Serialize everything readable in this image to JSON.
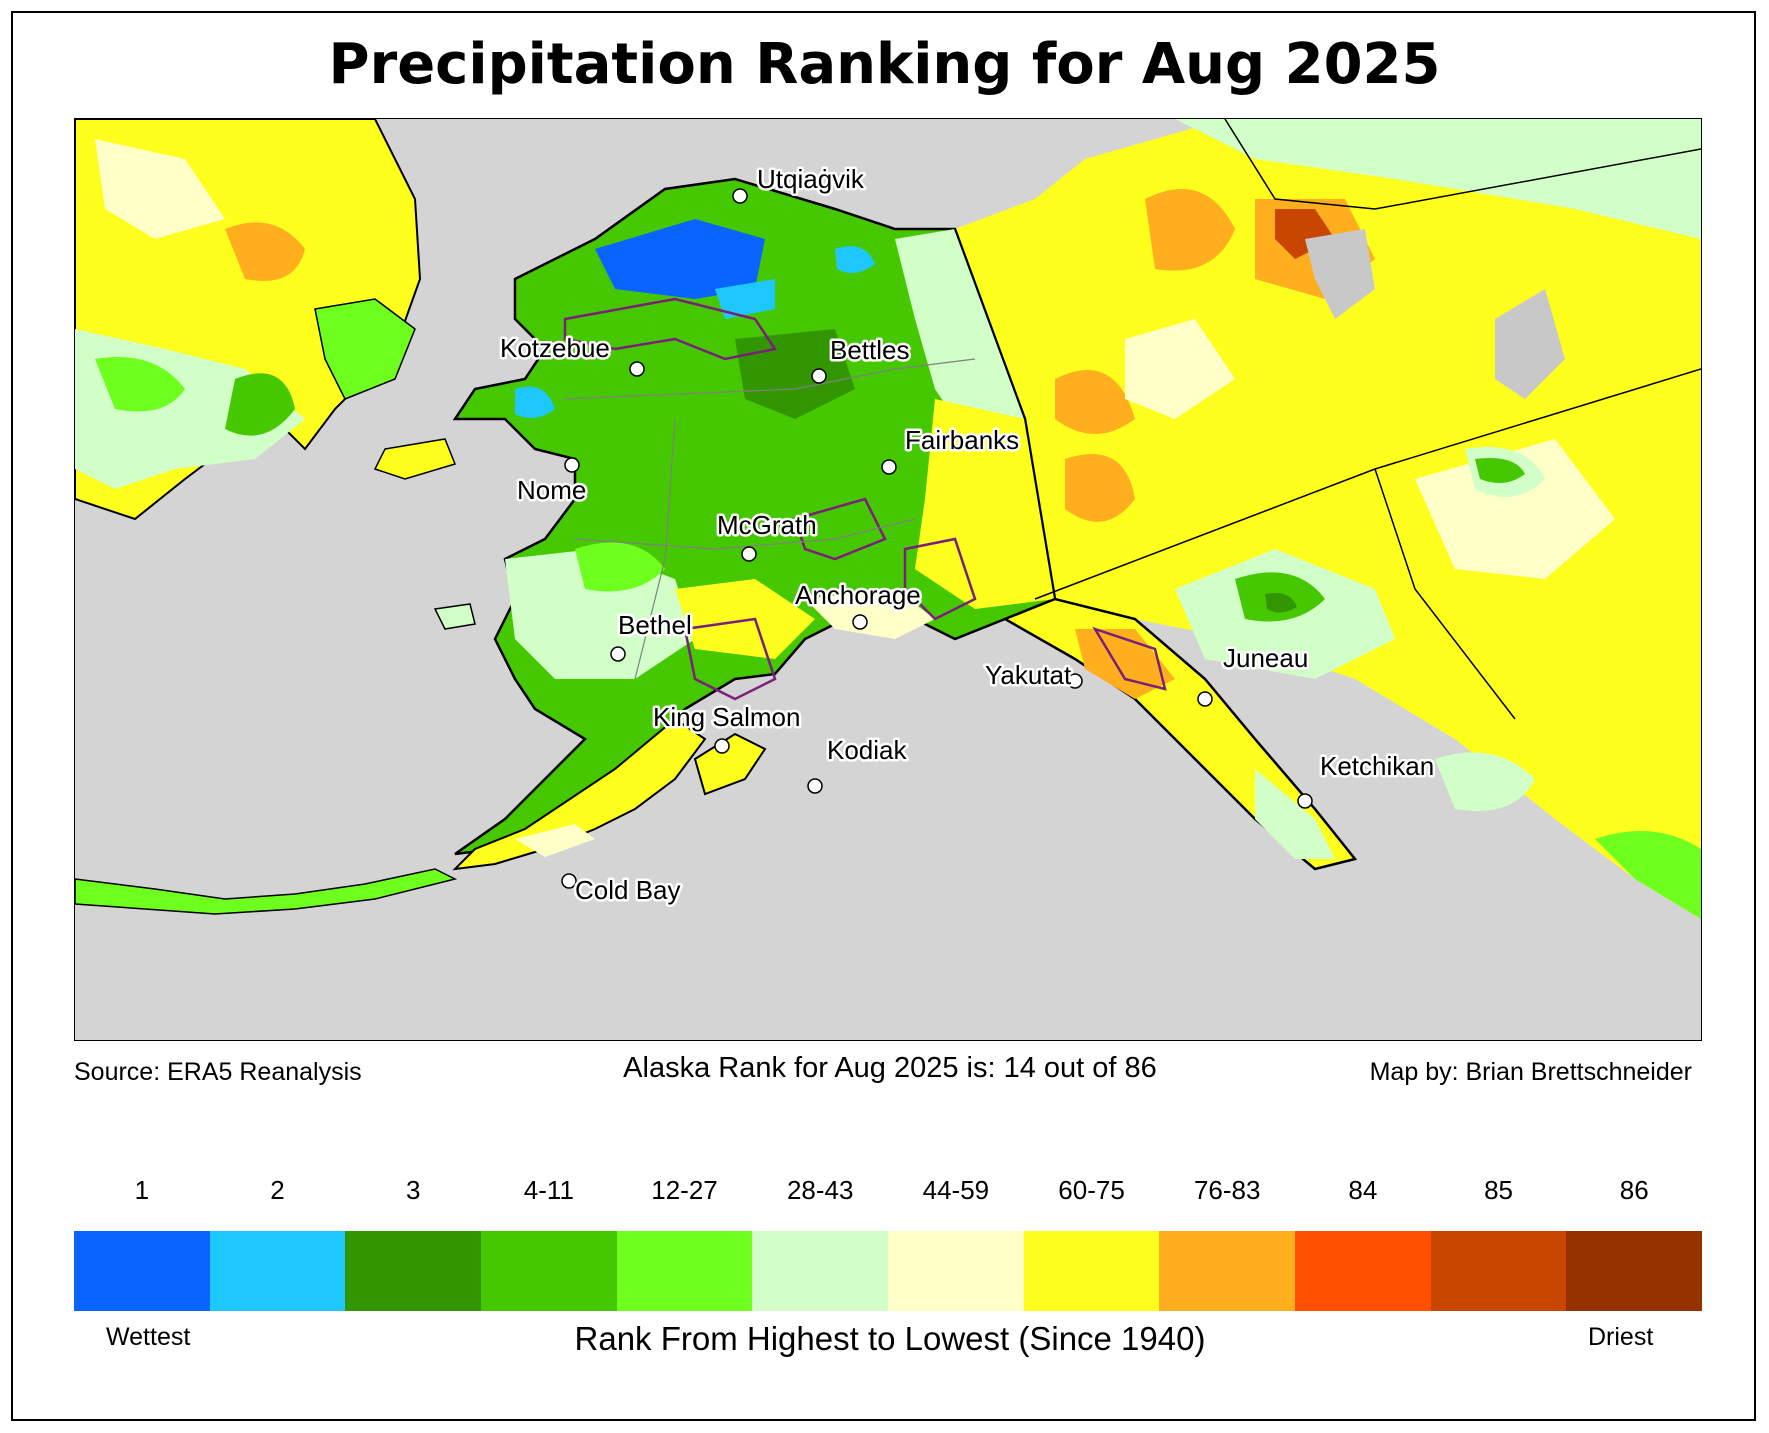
{
  "title": "Precipitation Ranking for Aug 2025",
  "footer": {
    "source": "Source: ERA5 Reanalysis",
    "rank_statement": "Alaska Rank for Aug 2025 is: 14 out of 86",
    "credit": "Map by: Brian Brettschneider"
  },
  "cities": [
    {
      "name": "Utqiaġvik"
    },
    {
      "name": "Kotzebue"
    },
    {
      "name": "Bettles"
    },
    {
      "name": "Fairbanks"
    },
    {
      "name": "Nome"
    },
    {
      "name": "McGrath"
    },
    {
      "name": "Bethel"
    },
    {
      "name": "Anchorage"
    },
    {
      "name": "Yakutat"
    },
    {
      "name": "Juneau"
    },
    {
      "name": "King Salmon"
    },
    {
      "name": "Kodiak"
    },
    {
      "name": "Ketchikan"
    },
    {
      "name": "Cold Bay"
    }
  ],
  "legend": {
    "classes": [
      {
        "label": "1",
        "color": "#0a64ff"
      },
      {
        "label": "2",
        "color": "#1ec8ff"
      },
      {
        "label": "3",
        "color": "#329600"
      },
      {
        "label": "4-11",
        "color": "#46c800"
      },
      {
        "label": "12-27",
        "color": "#6eff1e"
      },
      {
        "label": "28-43",
        "color": "#d2ffc8"
      },
      {
        "label": "44-59",
        "color": "#ffffc8"
      },
      {
        "label": "60-75",
        "color": "#ffff1e"
      },
      {
        "label": "76-83",
        "color": "#ffaf1e"
      },
      {
        "label": "84",
        "color": "#ff5000"
      },
      {
        "label": "85",
        "color": "#c84600"
      },
      {
        "label": "86",
        "color": "#963200"
      }
    ],
    "left_label": "Wettest",
    "right_label": "Driest",
    "axis_title": "Rank From Highest to Lowest (Since 1940)"
  },
  "colors": {
    "ocean": "#d4d4d4",
    "no_data": "#c8c8c8",
    "region_boundary": "#7a1f7a"
  }
}
